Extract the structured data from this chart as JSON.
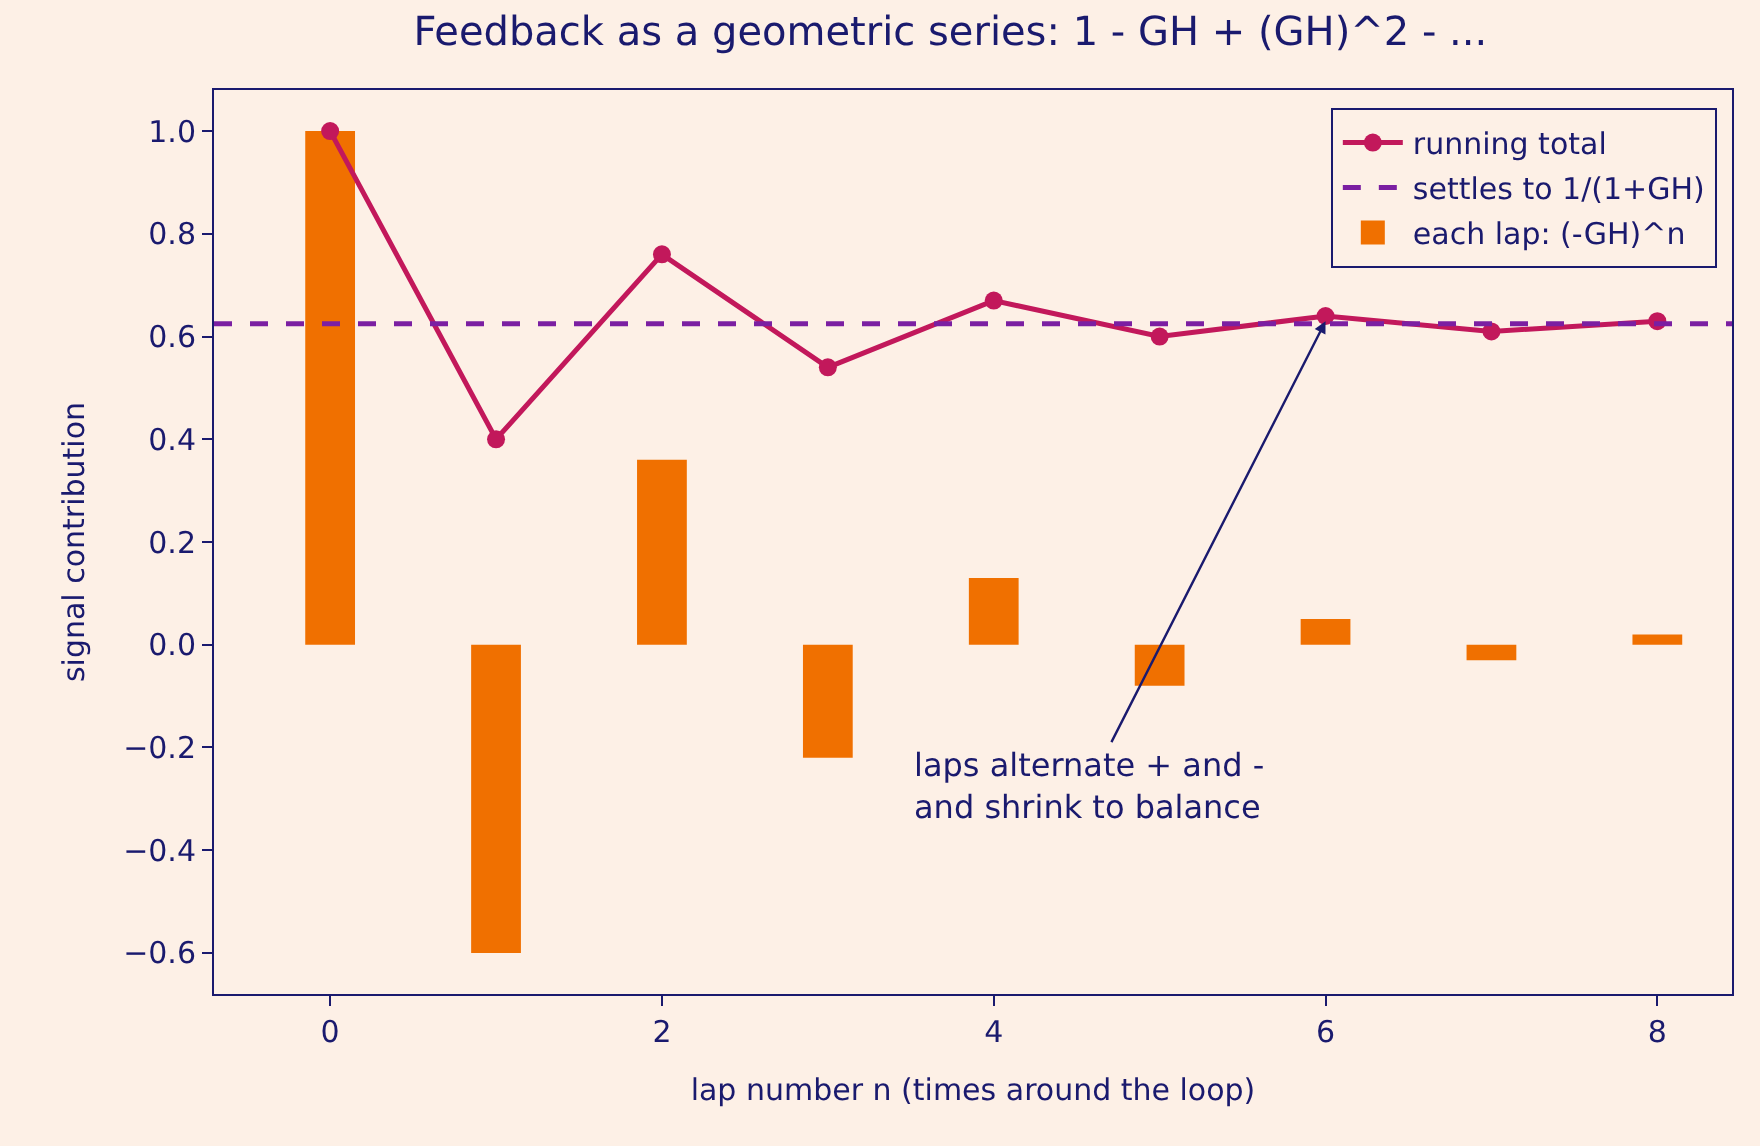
{
  "chart_data": {
    "type": "bar",
    "title": "Feedback as a geometric series: 1 - GH + (GH)^2 - ...",
    "xlabel": "lap number n (times around the loop)",
    "ylabel": "signal contribution",
    "x": [
      0,
      1,
      2,
      3,
      4,
      5,
      6,
      7,
      8
    ],
    "series": [
      {
        "name": "running total",
        "type": "line",
        "color": "#c2185b",
        "marker": "circle",
        "values": [
          1.0,
          0.4,
          0.76,
          0.54,
          0.67,
          0.6,
          0.64,
          0.61,
          0.63
        ]
      },
      {
        "name": "each lap: (-GH)^n",
        "color": "#f07000",
        "values": [
          1.0,
          -0.6,
          0.36,
          -0.22,
          0.13,
          -0.08,
          0.05,
          -0.03,
          0.02
        ]
      }
    ],
    "ref_lines": [
      {
        "axis": "y",
        "value": 0.625,
        "label": "settles to 1/(1+GH)",
        "color": "#7b1fa2",
        "line_style": "dashed"
      }
    ],
    "annotations": [
      {
        "text": "laps alternate + and -\nand shrink to balance",
        "x": 6,
        "y": 0.63
      }
    ],
    "xlim": [
      -0.7,
      8.45
    ],
    "ylim": [
      -0.68,
      1.08
    ],
    "xticks": [
      0,
      2,
      4,
      6,
      8
    ],
    "yticks": [
      {
        "value": -0.6,
        "label": "−0.6"
      },
      {
        "value": -0.4,
        "label": "−0.4"
      },
      {
        "value": -0.2,
        "label": "−0.2"
      },
      {
        "value": 0,
        "label": "0.0"
      },
      0.2,
      0.4,
      0.6,
      0.8,
      {
        "value": 1.0,
        "label": "1.0"
      }
    ],
    "grid": false,
    "legend": "top right"
  }
}
